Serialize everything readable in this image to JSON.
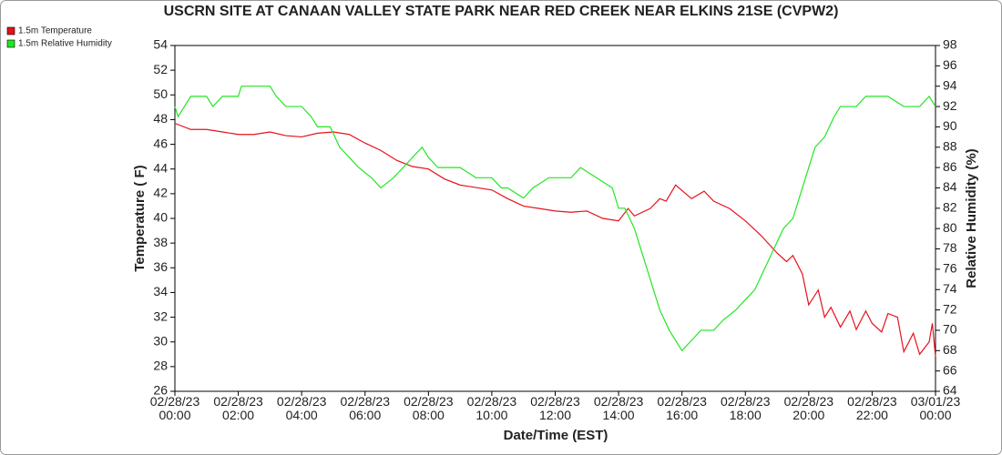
{
  "chart_data": {
    "type": "line",
    "title": "USCRN SITE AT CANAAN VALLEY STATE PARK NEAR RED CREEK NEAR ELKINS 21SE (CVPW2)",
    "xlabel": "Date/Time (EST)",
    "ylabel": "Temperature ( F)",
    "y2label": "Relative Humidity (%)",
    "xlim": [
      0,
      24
    ],
    "xticks": [
      {
        "value": 0,
        "label": "02/28/23\n00:00"
      },
      {
        "value": 2,
        "label": "02/28/23\n02:00"
      },
      {
        "value": 4,
        "label": "02/28/23\n04:00"
      },
      {
        "value": 6,
        "label": "02/28/23\n06:00"
      },
      {
        "value": 8,
        "label": "02/28/23\n08:00"
      },
      {
        "value": 10,
        "label": "02/28/23\n10:00"
      },
      {
        "value": 12,
        "label": "02/28/23\n12:00"
      },
      {
        "value": 14,
        "label": "02/28/23\n14:00"
      },
      {
        "value": 16,
        "label": "02/28/23\n16:00"
      },
      {
        "value": 18,
        "label": "02/28/23\n18:00"
      },
      {
        "value": 20,
        "label": "02/28/23\n20:00"
      },
      {
        "value": 22,
        "label": "02/28/23\n22:00"
      },
      {
        "value": 24,
        "label": "03/01/23\n00:00"
      }
    ],
    "ylim": [
      26,
      54
    ],
    "yticks": [
      26,
      28,
      30,
      32,
      34,
      36,
      38,
      40,
      42,
      44,
      46,
      48,
      50,
      52,
      54
    ],
    "y2lim": [
      64,
      98
    ],
    "y2ticks": [
      64,
      66,
      68,
      70,
      72,
      74,
      76,
      78,
      80,
      82,
      84,
      86,
      88,
      90,
      92,
      94,
      96,
      98
    ],
    "legend": "top-left",
    "series": [
      {
        "name": "1.5m Temperature",
        "color": "#e8101a",
        "x": [
          0,
          0.5,
          1,
          1.5,
          2,
          2.5,
          3,
          3.5,
          4,
          4.5,
          5,
          5.5,
          6,
          6.5,
          7,
          7.5,
          8,
          8.5,
          9,
          9.5,
          10,
          10.5,
          11,
          11.5,
          12,
          12.5,
          13,
          13.5,
          14,
          14.3,
          14.5,
          15,
          15.3,
          15.5,
          15.8,
          16.3,
          16.7,
          17,
          17.5,
          18,
          18.5,
          19,
          19.3,
          19.5,
          19.8,
          20,
          20.3,
          20.5,
          20.7,
          21,
          21.3,
          21.5,
          21.8,
          22,
          22.3,
          22.5,
          22.8,
          23,
          23.3,
          23.5,
          23.8,
          23.9,
          24
        ],
        "values": [
          47.7,
          47.2,
          47.2,
          47.0,
          46.8,
          46.8,
          47.0,
          46.7,
          46.6,
          46.9,
          47.0,
          46.8,
          46.1,
          45.5,
          44.7,
          44.2,
          44.0,
          43.2,
          42.7,
          42.5,
          42.3,
          41.6,
          41.0,
          40.8,
          40.6,
          40.5,
          40.6,
          40.0,
          39.8,
          40.8,
          40.2,
          40.8,
          41.6,
          41.4,
          42.7,
          41.6,
          42.2,
          41.4,
          40.8,
          39.8,
          38.6,
          37.2,
          36.5,
          37.0,
          35.5,
          33.0,
          34.2,
          32.0,
          32.8,
          31.2,
          32.5,
          31.0,
          32.5,
          31.5,
          30.8,
          32.3,
          32.0,
          29.2,
          30.7,
          29.0,
          30.0,
          31.5,
          28.8
        ]
      },
      {
        "name": "1.5m Relative Humidity",
        "color": "#22e622",
        "axis": "y2",
        "x": [
          0,
          0.1,
          0.3,
          0.5,
          1,
          1.2,
          1.5,
          2,
          2.1,
          2.5,
          3,
          3.2,
          3.5,
          4,
          4.3,
          4.5,
          4.9,
          5.2,
          5.5,
          5.8,
          6.2,
          6.5,
          6.9,
          7.2,
          7.5,
          7.8,
          8,
          8.3,
          9,
          9.5,
          10,
          10.3,
          10.5,
          11,
          11.3,
          11.8,
          12.5,
          12.8,
          13.3,
          13.8,
          14,
          14.2,
          14.5,
          14.8,
          15,
          15.3,
          15.6,
          16,
          16.3,
          16.6,
          17,
          17.3,
          17.7,
          18,
          18.3,
          18.6,
          18.9,
          19.2,
          19.5,
          19.8,
          20.2,
          20.5,
          20.8,
          21,
          21.5,
          21.8,
          22.5,
          23,
          23.5,
          23.8,
          24
        ],
        "values": [
          92,
          91,
          92,
          93,
          93,
          92,
          93,
          93,
          94,
          94,
          94,
          93,
          92,
          92,
          91,
          90,
          90,
          88,
          87,
          86,
          85,
          84,
          85,
          86,
          87,
          88,
          87,
          86,
          86,
          85,
          85,
          84,
          84,
          83,
          84,
          85,
          85,
          86,
          85,
          84,
          82,
          82,
          80,
          77,
          75,
          72,
          70,
          68,
          69,
          70,
          70,
          71,
          72,
          73,
          74,
          76,
          78,
          80,
          81,
          84,
          88,
          89,
          91,
          92,
          92,
          93,
          93,
          92,
          92,
          93,
          92
        ]
      }
    ]
  }
}
